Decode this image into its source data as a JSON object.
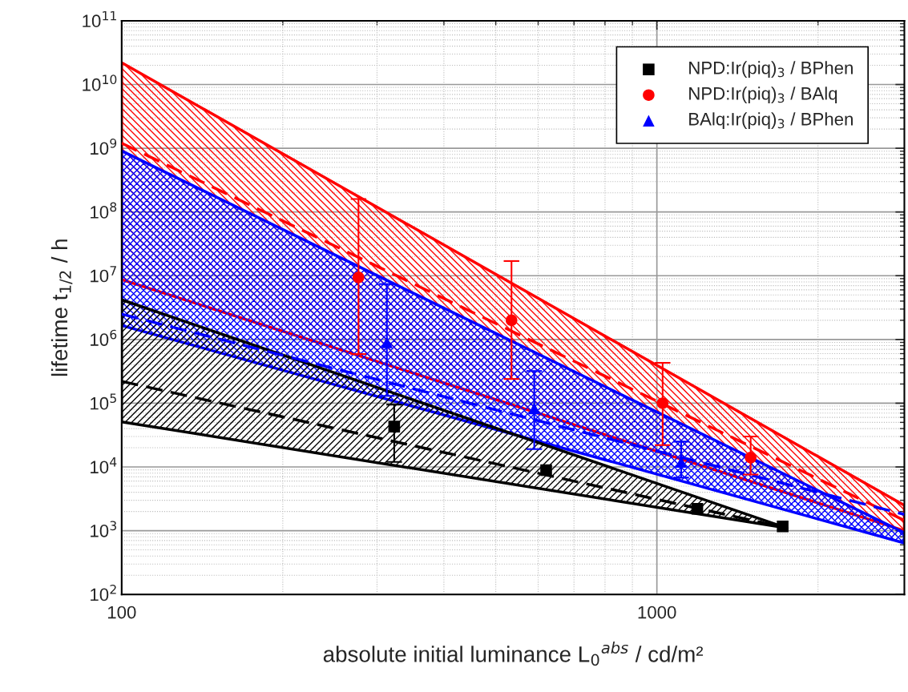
{
  "chart_data": {
    "type": "scatter",
    "xlabel": "absolute initial luminance L$_{0}$$^{abs}$ / cd/m²",
    "ylabel": "lifetime t$_{1/2}$ / h",
    "log": "xy",
    "grid": true,
    "legend": "top right",
    "xlim": [
      100,
      2900
    ],
    "xticks": [
      100,
      1000
    ],
    "ylim": [
      100,
      100000000000
    ],
    "yticks": [
      {
        "value": 100,
        "label": "10$^{2}$"
      },
      {
        "value": 1000,
        "label": "10$^{3}$"
      },
      {
        "value": 10000,
        "label": "10$^{4}$"
      },
      {
        "value": 100000,
        "label": "10$^{5}$"
      },
      {
        "value": 1000000,
        "label": "10$^{6}$"
      },
      {
        "value": 10000000,
        "label": "10$^{7}$"
      },
      {
        "value": 100000000,
        "label": "10$^{8}$"
      },
      {
        "value": 1000000000,
        "label": "10$^{9}$"
      },
      {
        "value": 10000000000,
        "label": "10$^{10}$"
      },
      {
        "value": 100000000000,
        "label": "10$^{11}$"
      }
    ],
    "series": [
      {
        "type": "line",
        "color": "#ff0000",
        "line_style": "dashed",
        "x": [
          100,
          2900
        ],
        "values": [
          1200000000,
          1450
        ],
        "lower": [
          8700000,
          1000
        ],
        "upper": [
          22000000000,
          2500
        ]
      },
      {
        "type": "line",
        "color": "#0000ff",
        "line_style": "dashed",
        "x": [
          100,
          2900
        ],
        "values": [
          2500000,
          1800
        ],
        "lower": [
          1660000,
          640
        ],
        "upper": [
          910000000,
          930
        ]
      },
      {
        "type": "line",
        "color": "#000000",
        "line_style": "dashed",
        "x": [
          100,
          1750
        ],
        "values": [
          220000,
          1100
        ],
        "lower": [
          51000,
          1100
        ],
        "upper": [
          4200000,
          1100
        ]
      },
      {
        "name": "NPD:Ir(piq)$_{3}$ / BPhen",
        "color": "#000000",
        "marker": "square",
        "x": [
          323,
          621,
          1190,
          1718
        ],
        "values": [
          43000,
          8900,
          2200,
          1170
        ],
        "errors": [
          [
            12000,
            95000
          ],
          null,
          null,
          null
        ]
      },
      {
        "name": "NPD:Ir(piq)$_{3}$ / BAlq",
        "color": "#ff0000",
        "marker": "circle",
        "x": [
          277,
          535,
          1025,
          1497
        ],
        "values": [
          9400000,
          2000000,
          100000,
          14000
        ],
        "errors": [
          [
            590000,
            160000000
          ],
          [
            240000,
            17000000
          ],
          [
            22000,
            430000
          ],
          [
            7600,
            30000
          ]
        ]
      },
      {
        "name": "BAlq:Ir(piq)$_{3}$ / BPhen",
        "color": "#0000ff",
        "marker": "triangle",
        "x": [
          313,
          590,
          1110
        ],
        "values": [
          900000,
          83000,
          12000
        ],
        "errors": [
          [
            130000,
            7400000
          ],
          [
            19000,
            320000
          ],
          [
            6800,
            25000
          ]
        ]
      }
    ]
  }
}
